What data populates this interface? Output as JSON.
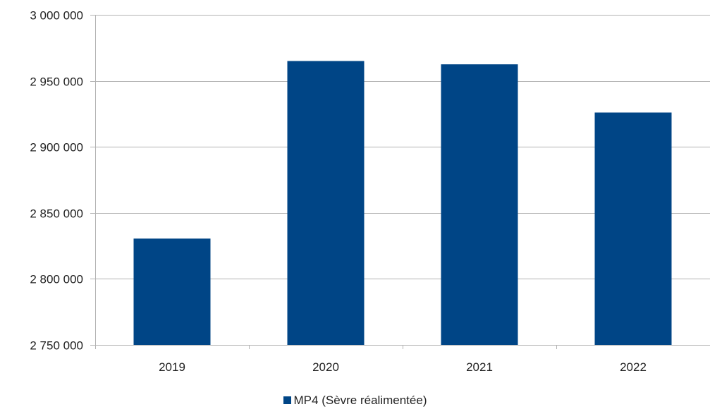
{
  "chart_data": {
    "type": "bar",
    "categories": [
      "2019",
      "2020",
      "2021",
      "2022"
    ],
    "series": [
      {
        "name": "MP4 (Sèvre réalimentée)",
        "values": [
          2830500,
          2965000,
          2962500,
          2926000
        ]
      }
    ],
    "ylim": [
      2750000,
      3000000
    ],
    "yticks": [
      2750000,
      2800000,
      2850000,
      2900000,
      2950000,
      3000000
    ],
    "ytick_labels": [
      "2 750 000",
      "2 800 000",
      "2 850 000",
      "2 900 000",
      "2 950 000",
      "3 000 000"
    ],
    "grid": true,
    "legend_position": "bottom",
    "bar_color": "#004586",
    "grid_color": "#b3b3b3"
  }
}
